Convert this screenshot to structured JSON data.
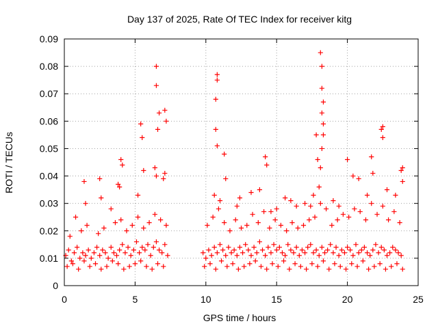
{
  "chart_data": {
    "type": "scatter",
    "title": "Day 137 of 2025, Rate Of TEC Index for receiver kitg",
    "xlabel": "GPS time / hours",
    "ylabel": "ROTI / TECUs",
    "xlim": [
      0,
      25
    ],
    "ylim": [
      0,
      0.09
    ],
    "xticks": [
      0,
      5,
      10,
      15,
      20,
      25
    ],
    "xtick_labels": [
      "0",
      "5",
      "10",
      "15",
      "20",
      "25"
    ],
    "yticks": [
      0,
      0.01,
      0.02,
      0.03,
      0.04,
      0.05,
      0.06,
      0.07,
      0.08,
      0.09
    ],
    "ytick_labels": [
      "0",
      "0.01",
      "0.02",
      "0.03",
      "0.04",
      "0.05",
      "0.06",
      "0.07",
      "0.08",
      "0.09"
    ],
    "grid": true,
    "marker": "+",
    "color": "#ff0000",
    "series": [
      {
        "name": "ROTI",
        "x": [
          0.1,
          0.3,
          0.5,
          0.7,
          0.9,
          1.1,
          1.3,
          1.5,
          1.7,
          1.9,
          2.1,
          2.3,
          2.5,
          2.7,
          2.9,
          3.1,
          3.3,
          3.5,
          3.7,
          3.9,
          4.1,
          4.3,
          4.5,
          4.7,
          4.9,
          5.1,
          5.3,
          5.5,
          5.7,
          5.9,
          6.1,
          6.3,
          6.5,
          6.7,
          6.9,
          7.1,
          7.3,
          0.2,
          0.6,
          1.0,
          1.4,
          1.8,
          2.2,
          2.6,
          3.0,
          3.4,
          3.8,
          4.2,
          4.6,
          5.0,
          5.4,
          5.8,
          6.2,
          6.6,
          7.0,
          0.4,
          1.2,
          1.6,
          2.4,
          2.8,
          3.6,
          4.0,
          4.4,
          4.8,
          5.2,
          5.6,
          6.0,
          6.4,
          6.8,
          7.2,
          0.8,
          1.5,
          2.6,
          3.3,
          3.9,
          4.1,
          5.2,
          5.6,
          6.5,
          6.6,
          6.7,
          7.0,
          7.1,
          5.4,
          5.5,
          6.4,
          6.5,
          6.5,
          7.1,
          7.2,
          3.8,
          4.0,
          2.5,
          1.4,
          9.8,
          10.0,
          10.2,
          10.4,
          10.6,
          10.8,
          11.0,
          11.2,
          11.4,
          11.6,
          11.8,
          12.0,
          12.2,
          12.4,
          12.6,
          12.8,
          13.0,
          13.2,
          13.4,
          13.6,
          13.8,
          14.0,
          14.2,
          14.4,
          14.6,
          14.8,
          15.0,
          15.2,
          15.4,
          15.6,
          15.8,
          16.0,
          16.2,
          16.4,
          16.6,
          16.8,
          17.0,
          17.2,
          17.4,
          17.6,
          17.8,
          18.0,
          18.2,
          18.4,
          18.6,
          18.8,
          19.0,
          19.2,
          19.4,
          19.6,
          19.8,
          20.0,
          20.2,
          20.4,
          20.6,
          20.8,
          21.0,
          21.2,
          21.4,
          21.6,
          21.8,
          22.0,
          22.2,
          22.4,
          22.6,
          22.8,
          23.0,
          23.2,
          23.4,
          23.6,
          23.8,
          9.9,
          10.3,
          10.7,
          11.1,
          11.5,
          11.9,
          12.3,
          12.7,
          13.1,
          13.5,
          13.9,
          14.3,
          14.7,
          15.1,
          15.5,
          15.9,
          16.3,
          16.7,
          17.1,
          17.5,
          17.9,
          18.3,
          18.7,
          19.1,
          19.5,
          19.9,
          20.3,
          20.7,
          21.1,
          21.5,
          21.9,
          22.3,
          22.7,
          23.1,
          23.5,
          23.9,
          10.1,
          10.5,
          10.9,
          11.3,
          11.7,
          12.1,
          12.5,
          12.9,
          13.3,
          13.7,
          14.1,
          14.5,
          14.9,
          15.3,
          15.7,
          16.1,
          16.5,
          16.9,
          17.3,
          17.7,
          18.1,
          18.5,
          18.9,
          19.3,
          19.7,
          20.1,
          20.5,
          20.9,
          21.3,
          21.7,
          22.1,
          22.5,
          22.9,
          23.3,
          23.7,
          10.8,
          10.8,
          10.7,
          10.7,
          10.8,
          11.3,
          11.4,
          14.2,
          14.3,
          17.8,
          17.9,
          18.1,
          18.2,
          18.2,
          18.3,
          18.2,
          18.3,
          18.3,
          18.1,
          18.2,
          20.0,
          20.4,
          21.7,
          21.8,
          22.4,
          22.5,
          22.5,
          23.9,
          23.9,
          23.8,
          18.0,
          17.6,
          16.0,
          15.0,
          12.4,
          13.2,
          10.6,
          11.0,
          12.2,
          13.8,
          15.6,
          16.4,
          17.0,
          19.0,
          19.4,
          20.8,
          21.4,
          22.8,
          23.4,
          14.6,
          17.4
        ],
        "y": [
          0.011,
          0.013,
          0.009,
          0.012,
          0.014,
          0.01,
          0.012,
          0.011,
          0.013,
          0.01,
          0.012,
          0.014,
          0.011,
          0.013,
          0.012,
          0.01,
          0.014,
          0.012,
          0.011,
          0.013,
          0.015,
          0.012,
          0.014,
          0.011,
          0.013,
          0.016,
          0.012,
          0.014,
          0.013,
          0.015,
          0.011,
          0.014,
          0.016,
          0.013,
          0.012,
          0.015,
          0.011,
          0.007,
          0.008,
          0.006,
          0.009,
          0.007,
          0.008,
          0.006,
          0.007,
          0.009,
          0.008,
          0.006,
          0.007,
          0.008,
          0.009,
          0.007,
          0.006,
          0.008,
          0.007,
          0.018,
          0.02,
          0.022,
          0.019,
          0.021,
          0.023,
          0.024,
          0.02,
          0.022,
          0.025,
          0.021,
          0.023,
          0.026,
          0.024,
          0.022,
          0.025,
          0.03,
          0.032,
          0.028,
          0.036,
          0.044,
          0.033,
          0.042,
          0.04,
          0.057,
          0.063,
          0.039,
          0.041,
          0.059,
          0.054,
          0.043,
          0.073,
          0.08,
          0.064,
          0.06,
          0.037,
          0.046,
          0.039,
          0.038,
          0.012,
          0.01,
          0.013,
          0.011,
          0.014,
          0.012,
          0.015,
          0.013,
          0.011,
          0.014,
          0.012,
          0.013,
          0.011,
          0.014,
          0.012,
          0.015,
          0.013,
          0.011,
          0.014,
          0.012,
          0.016,
          0.013,
          0.011,
          0.014,
          0.012,
          0.015,
          0.013,
          0.014,
          0.012,
          0.011,
          0.015,
          0.013,
          0.012,
          0.014,
          0.011,
          0.013,
          0.012,
          0.014,
          0.015,
          0.012,
          0.013,
          0.011,
          0.014,
          0.012,
          0.013,
          0.015,
          0.012,
          0.014,
          0.011,
          0.013,
          0.012,
          0.014,
          0.013,
          0.011,
          0.015,
          0.012,
          0.013,
          0.014,
          0.012,
          0.011,
          0.013,
          0.015,
          0.012,
          0.014,
          0.013,
          0.011,
          0.012,
          0.014,
          0.013,
          0.012,
          0.011,
          0.007,
          0.008,
          0.006,
          0.009,
          0.007,
          0.008,
          0.006,
          0.007,
          0.008,
          0.009,
          0.007,
          0.006,
          0.008,
          0.007,
          0.009,
          0.006,
          0.008,
          0.007,
          0.006,
          0.008,
          0.007,
          0.009,
          0.006,
          0.008,
          0.007,
          0.006,
          0.008,
          0.007,
          0.009,
          0.006,
          0.007,
          0.008,
          0.006,
          0.007,
          0.008,
          0.006,
          0.022,
          0.025,
          0.028,
          0.023,
          0.02,
          0.024,
          0.021,
          0.022,
          0.026,
          0.023,
          0.027,
          0.021,
          0.024,
          0.022,
          0.02,
          0.023,
          0.021,
          0.022,
          0.024,
          0.025,
          0.03,
          0.028,
          0.022,
          0.024,
          0.026,
          0.025,
          0.028,
          0.027,
          0.024,
          0.03,
          0.026,
          0.029,
          0.024,
          0.027,
          0.023,
          0.077,
          0.075,
          0.068,
          0.057,
          0.051,
          0.048,
          0.039,
          0.047,
          0.044,
          0.055,
          0.046,
          0.085,
          0.08,
          0.072,
          0.067,
          0.063,
          0.059,
          0.055,
          0.043,
          0.05,
          0.046,
          0.04,
          0.047,
          0.041,
          0.057,
          0.058,
          0.054,
          0.043,
          0.038,
          0.042,
          0.036,
          0.033,
          0.031,
          0.028,
          0.032,
          0.034,
          0.033,
          0.031,
          0.029,
          0.035,
          0.032,
          0.029,
          0.03,
          0.031,
          0.029,
          0.039,
          0.033,
          0.035,
          0.033,
          0.027,
          0.029
        ]
      }
    ]
  }
}
